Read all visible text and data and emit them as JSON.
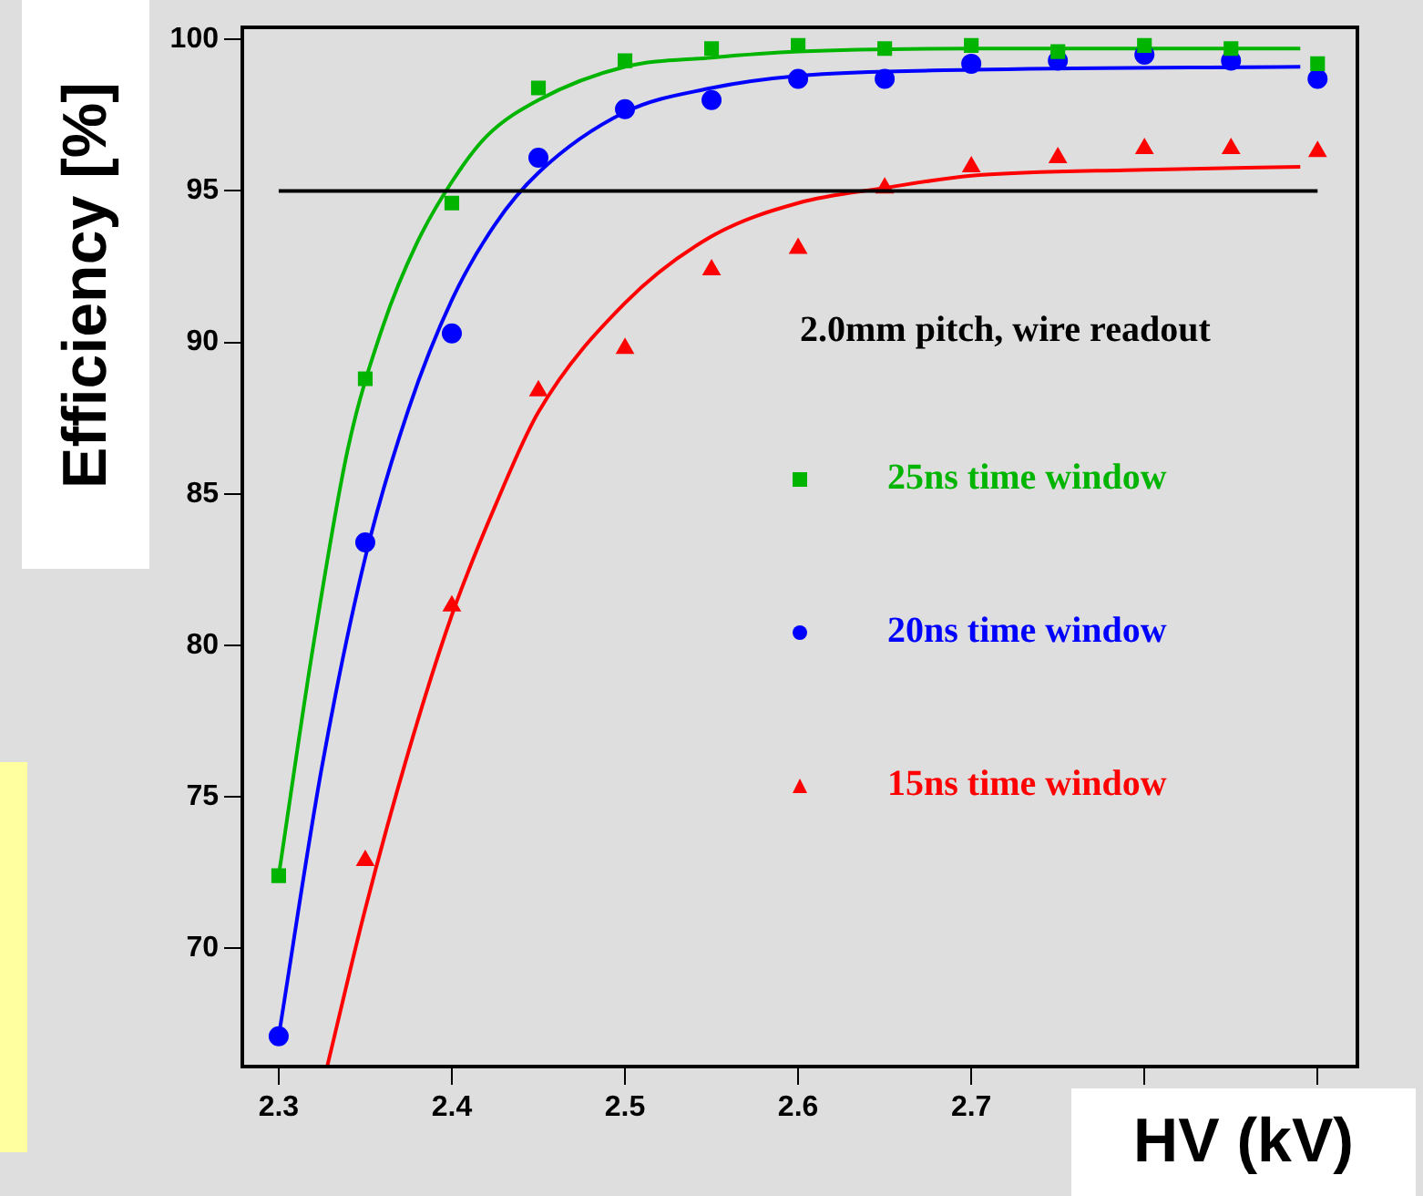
{
  "chart_data": {
    "type": "scatter",
    "xlabel": "HV (kV)",
    "ylabel": "Efficiency [%]",
    "annotations": [
      "2.0mm pitch, wire readout"
    ],
    "x": [
      2.3,
      2.35,
      2.4,
      2.45,
      2.5,
      2.55,
      2.6,
      2.65,
      2.7,
      2.75,
      2.8,
      2.85,
      2.9
    ],
    "xlim": [
      2.279,
      2.923
    ],
    "xticks": [
      2.3,
      2.4,
      2.5,
      2.6,
      2.7,
      {
        "value": 2.8,
        "label": null
      },
      {
        "value": 2.9,
        "label": null
      }
    ],
    "ylim": [
      66.1,
      100.4
    ],
    "yticks": [
      70,
      75,
      80,
      85,
      90,
      95,
      100
    ],
    "grid": false,
    "legend": "right",
    "ref_lines": [
      {
        "axis": "y",
        "value": 95,
        "color": "#000000"
      }
    ],
    "series": [
      {
        "name": "25ns time window",
        "marker": "square",
        "color": "#00b400",
        "values": [
          72.4,
          88.8,
          94.6,
          98.4,
          99.3,
          99.7,
          99.8,
          99.7,
          99.8,
          99.6,
          99.8,
          99.7,
          99.2
        ]
      },
      {
        "name": "20ns time window",
        "marker": "circle",
        "color": "#0000ff",
        "values": [
          67.1,
          83.4,
          90.3,
          96.1,
          97.7,
          98.0,
          98.7,
          98.7,
          99.2,
          99.3,
          99.5,
          99.3,
          98.7
        ]
      },
      {
        "name": "15ns time window",
        "marker": "triangle",
        "color": "#ff0000",
        "values": [
          null,
          72.9,
          81.3,
          88.4,
          89.8,
          92.4,
          93.1,
          95.1,
          95.8,
          96.1,
          96.4,
          96.4,
          96.3
        ]
      },
      {
        "type": "line",
        "marker": "none",
        "color": "#00b400",
        "x": [
          2.3,
          2.32,
          2.34,
          2.36,
          2.38,
          2.4,
          2.42,
          2.45,
          2.5,
          2.55,
          2.6,
          2.7,
          2.89
        ],
        "values": [
          72.4,
          80.0,
          86.5,
          90.5,
          93.3,
          95.3,
          96.8,
          98.0,
          99.1,
          99.4,
          99.6,
          99.7,
          99.7
        ]
      },
      {
        "type": "line",
        "marker": "none",
        "color": "#0000ff",
        "x": [
          2.3,
          2.325,
          2.35,
          2.375,
          2.4,
          2.425,
          2.45,
          2.5,
          2.55,
          2.6,
          2.7,
          2.89
        ],
        "values": [
          67.1,
          76.0,
          82.9,
          87.8,
          91.4,
          93.9,
          95.6,
          97.6,
          98.4,
          98.8,
          99.0,
          99.1
        ]
      },
      {
        "type": "line",
        "marker": "none",
        "color": "#ff0000",
        "x": [
          2.328,
          2.35,
          2.375,
          2.4,
          2.425,
          2.45,
          2.5,
          2.55,
          2.6,
          2.65,
          2.7,
          2.8,
          2.89
        ],
        "values": [
          66.1,
          71.3,
          76.5,
          81.0,
          84.6,
          87.7,
          91.3,
          93.5,
          94.6,
          95.1,
          95.5,
          95.7,
          95.8
        ]
      }
    ]
  }
}
